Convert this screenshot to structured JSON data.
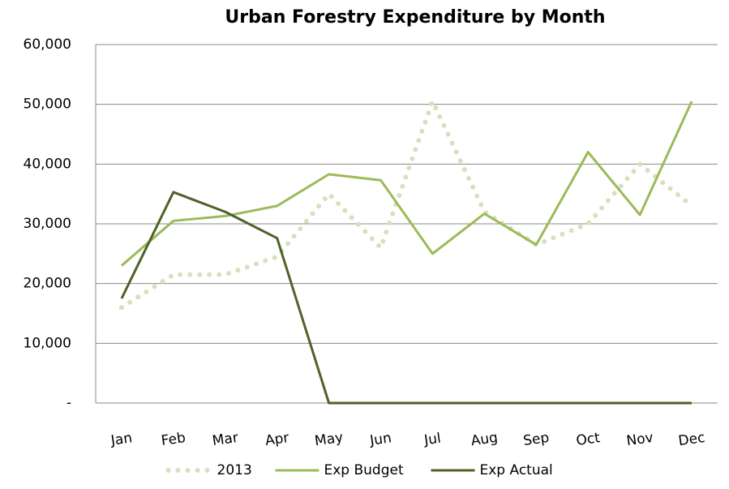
{
  "chart_data": {
    "type": "line",
    "title": "Urban Forestry Expenditure by Month",
    "categories": [
      "Jan",
      "Feb",
      "Mar",
      "Apr",
      "May",
      "Jun",
      "Jul",
      "Aug",
      "Sep",
      "Oct",
      "Nov",
      "Dec"
    ],
    "series": [
      {
        "name": "2013",
        "color": "#d7e0bd",
        "dash": "dotted",
        "values": [
          16000,
          21500,
          21500,
          24500,
          35000,
          26000,
          50500,
          32000,
          26500,
          30000,
          40000,
          33000
        ]
      },
      {
        "name": "Exp Budget",
        "color": "#9bbb59",
        "values": [
          23000,
          30500,
          31300,
          33000,
          38300,
          37300,
          25000,
          31700,
          26500,
          42000,
          31500,
          50500
        ]
      },
      {
        "name": "Exp Actual",
        "color": "#4f6228",
        "values": [
          17500,
          35300,
          32000,
          27600,
          0,
          0,
          0,
          0,
          0,
          0,
          0,
          0
        ]
      }
    ],
    "ylim": [
      0,
      60000
    ],
    "yticks": [
      {
        "value": 0,
        "label": "-"
      },
      {
        "value": 10000,
        "label": "10,000"
      },
      {
        "value": 20000,
        "label": "20,000"
      },
      {
        "value": 30000,
        "label": "30,000"
      },
      {
        "value": 40000,
        "label": "40,000"
      },
      {
        "value": 50000,
        "label": "50,000"
      },
      {
        "value": 60000,
        "label": "60,000"
      }
    ],
    "grid": true,
    "legend": "bottom"
  }
}
